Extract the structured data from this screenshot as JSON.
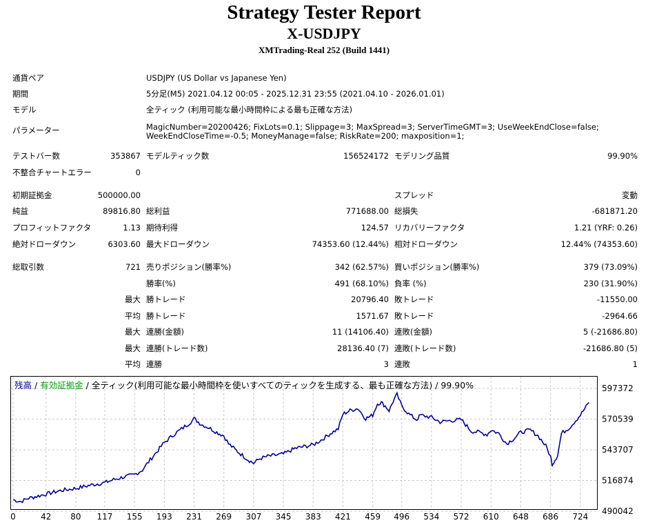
{
  "header": {
    "title": "Strategy Tester Report",
    "symbol": "X-USDJPY",
    "server": "XMTrading-Real 252 (Build 1441)"
  },
  "settings": {
    "pair_label": "通貨ペア",
    "pair_value": "USDJPY (US Dollar vs Japanese Yen)",
    "period_label": "期間",
    "period_value": "5分足(M5) 2021.04.12 00:05 - 2025.12.31 23:55 (2021.04.10 - 2026.01.01)",
    "model_label": "モデル",
    "model_value": "全ティック (利用可能な最小時間枠による最も正確な方法)",
    "params_label": "パラメーター",
    "params_line1": "MagicNumber=20200426; FixLots=0.1; Slippage=3; MaxSpread=3; ServerTimeGMT=3; UseWeekEndClose=false;",
    "params_line2": "WeekEndCloseTime=-0.5; MoneyManage=false; RiskRate=200; maxposition=1;"
  },
  "stats": {
    "bars_label": "テストバー数",
    "bars_value": "353867",
    "ticks_label": "モデルティック数",
    "ticks_value": "156524172",
    "quality_label": "モデリング品質",
    "quality_value": "99.90%",
    "mismatch_label": "不整合チャートエラー",
    "mismatch_value": "0",
    "deposit_label": "初期証拠金",
    "deposit_value": "500000.00",
    "spread_label": "スプレッド",
    "spread_value": "変動",
    "net_label": "純益",
    "net_value": "89816.80",
    "gross_profit_label": "総利益",
    "gross_profit_value": "771688.00",
    "gross_loss_label": "総損失",
    "gross_loss_value": "-681871.20",
    "pf_label": "プロフィットファクタ",
    "pf_value": "1.13",
    "expected_label": "期待利得",
    "expected_value": "124.57",
    "recovery_label": "リカバリーファクタ",
    "recovery_value": "1.21 (YRF: 0.26)",
    "abs_dd_label": "絶対ドローダウン",
    "abs_dd_value": "6303.60",
    "max_dd_label": "最大ドローダウン",
    "max_dd_value": "74353.60 (12.44%)",
    "rel_dd_label": "相対ドローダウン",
    "rel_dd_value": "12.44% (74353.60)",
    "trades_label": "総取引数",
    "trades_value": "721",
    "short_label": "売りポジション(勝率%)",
    "short_value": "342 (62.57%)",
    "long_label": "買いポジション(勝率%)",
    "long_value": "379 (73.09%)",
    "winrate_label": "勝率(%)",
    "winrate_value": "491 (68.10%)",
    "lossrate_label": "負率 (%)",
    "lossrate_value": "230 (31.90%)",
    "max_prefix": "最大",
    "avg_prefix": "平均",
    "largest_win_label": "勝トレード",
    "largest_win_value": "20796.40",
    "largest_loss_label": "敗トレード",
    "largest_loss_value": "-11550.00",
    "avg_win_label": "勝トレード",
    "avg_win_value": "1571.67",
    "avg_loss_label": "敗トレード",
    "avg_loss_value": "-2964.66",
    "max_consec_win_label": "連勝(金額)",
    "max_consec_win_value": "11 (14106.40)",
    "max_consec_loss_label": "連敗(金額)",
    "max_consec_loss_value": "5 (-21686.80)",
    "max_consec_profit_label": "連勝(トレード数)",
    "max_consec_profit_value": "28136.40 (7)",
    "max_consec_lossamt_label": "連敗(トレード数)",
    "max_consec_lossamt_value": "-21686.80 (5)",
    "avg_consec_win_label": "連勝",
    "avg_consec_win_value": "3",
    "avg_consec_loss_label": "連敗",
    "avg_consec_loss_value": "1"
  },
  "chart_data": {
    "type": "line",
    "legend_balance": "残高",
    "legend_sep1": " / ",
    "legend_equity": "有効証拠金",
    "legend_sep2": " / ",
    "legend_model": "全ティック(利用可能な最小時間枠を使いすべてのティックを生成する、最も正確な方法) / 99.90%",
    "colors": {
      "balance": "#0000a0",
      "equity": "#00a000",
      "grid": "#c8c8c8"
    },
    "x_ticks": [
      "0",
      "42",
      "80",
      "117",
      "155",
      "193",
      "231",
      "269",
      "307",
      "345",
      "383",
      "421",
      "459",
      "496",
      "534",
      "572",
      "610",
      "648",
      "686",
      "724"
    ],
    "y_ticks": [
      "597372",
      "570539",
      "543707",
      "516874",
      "490042"
    ],
    "ylim": [
      490042,
      597372
    ],
    "xlim": [
      0,
      740
    ],
    "x": [
      0,
      10,
      20,
      30,
      42,
      60,
      80,
      100,
      117,
      130,
      142,
      155,
      165,
      175,
      193,
      205,
      215,
      225,
      231,
      240,
      250,
      260,
      269,
      275,
      285,
      300,
      307,
      315,
      325,
      345,
      360,
      375,
      383,
      395,
      405,
      415,
      421,
      430,
      440,
      450,
      459,
      465,
      470,
      475,
      480,
      485,
      490,
      496,
      505,
      515,
      520,
      534,
      545,
      555,
      572,
      585,
      595,
      605,
      610,
      620,
      630,
      640,
      648,
      660,
      670,
      680,
      686,
      688,
      690,
      695,
      700,
      710,
      724,
      735
    ],
    "y": [
      500000,
      498500,
      501500,
      503000,
      505000,
      508000,
      510000,
      513000,
      515000,
      518000,
      520000,
      522000,
      526000,
      535000,
      550000,
      557000,
      562000,
      567000,
      571000,
      566000,
      563000,
      559000,
      556000,
      549000,
      543000,
      535000,
      532000,
      536000,
      538000,
      540000,
      545000,
      547000,
      548000,
      553000,
      558000,
      562000,
      575000,
      578000,
      580000,
      571000,
      574000,
      584000,
      585000,
      582000,
      578000,
      586000,
      592000,
      582000,
      575000,
      570000,
      574000,
      572000,
      568000,
      569000,
      570000,
      560000,
      559000,
      557000,
      561000,
      558000,
      549000,
      554000,
      559000,
      561000,
      556000,
      547000,
      538000,
      531000,
      533000,
      539000,
      558000,
      563000,
      574000,
      585000
    ]
  }
}
